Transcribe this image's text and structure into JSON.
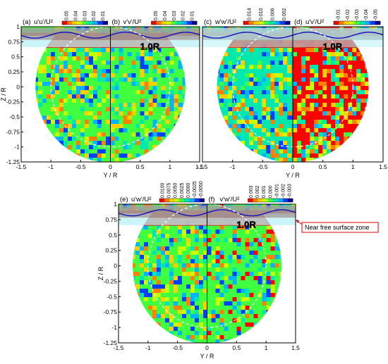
{
  "colors": {
    "scale": [
      "#ff0000",
      "#ff8000",
      "#ffd000",
      "#c8ff00",
      "#40ff40",
      "#00e8b0",
      "#00b4ff",
      "#0040ff",
      "#000090"
    ],
    "free_surface_band": "#a0a0a0",
    "free_surface_zone_fill": "#b8f0f4",
    "wave": "#1010c0",
    "top_wedge": "#d81010",
    "circle_dash": "#ffffff",
    "annotation": "#e00000"
  },
  "annotations": {
    "radius_label": "1.0R",
    "zone_label": "Near free surface zone"
  },
  "chart_data": [
    {
      "type": "heatmap",
      "xlabel": "Y / R",
      "ylabel": "Z / R",
      "xlim": [
        -1.5,
        1.5
      ],
      "ylim": [
        -1.25,
        1
      ],
      "x_ticks": [
        "-1.5",
        "-1",
        "-0.5",
        "0",
        "0.5",
        "1",
        "1.5"
      ],
      "y_ticks": [
        "1",
        "0.75",
        "0.5",
        "0.25",
        "0",
        "-0.25",
        "-0.5",
        "-0.75",
        "-1",
        "-1.25"
      ],
      "panels": [
        {
          "id": "a",
          "label": "(a)",
          "quantity": "u'u'/U²",
          "side": "left",
          "colorbar_ticks": [
            "0.05",
            "0.04",
            "0.03",
            "0.02",
            "0.01"
          ]
        },
        {
          "id": "b",
          "label": "(b)",
          "quantity": "v'v'/U²",
          "side": "right",
          "colorbar_ticks": [
            "0.05",
            "0.04",
            "0.03",
            "0.02",
            "0.01"
          ]
        }
      ]
    },
    {
      "type": "heatmap",
      "xlabel": "Y / R",
      "ylabel": "",
      "xlim": [
        -1.5,
        1.5
      ],
      "ylim": [
        -1.25,
        1
      ],
      "x_ticks": [
        "-1.5",
        "-1",
        "-0.5",
        "0",
        "0.5",
        "1",
        "1.5"
      ],
      "panels": [
        {
          "id": "c",
          "label": "(c)",
          "quantity": "w'w'/U²",
          "side": "left",
          "colorbar_ticks": [
            "0.014",
            "0.010",
            "0.006",
            "0.002"
          ]
        },
        {
          "id": "d",
          "label": "(d)",
          "quantity": "u'v'/U²",
          "side": "right",
          "colorbar_ticks": [
            "-0.01",
            "-0.02",
            "-0.03",
            "-0.04",
            "-0.05"
          ]
        }
      ]
    },
    {
      "type": "heatmap",
      "xlabel": "Y / R",
      "ylabel": "Z / R",
      "xlim": [
        -1.5,
        1.5
      ],
      "ylim": [
        -1.25,
        1
      ],
      "x_ticks": [
        "-1.5",
        "-1",
        "-0.5",
        "0",
        "0.5",
        "1",
        "1.5"
      ],
      "y_ticks": [
        "1",
        "0.75",
        "0.5",
        "0.25",
        "0",
        "-0.25",
        "-0.5",
        "-0.75",
        "-1",
        "-1.25"
      ],
      "panels": [
        {
          "id": "e",
          "label": "(e)",
          "quantity": "u'w'/U²",
          "side": "left",
          "colorbar_ticks": [
            "0.0100",
            "0.0075",
            "0.0050",
            "0.0025",
            "0.0000",
            "-0.0025",
            "-0.0050"
          ]
        },
        {
          "id": "f",
          "label": "(f)",
          "quantity": "v'w'/U²",
          "side": "right",
          "colorbar_ticks": [
            "0.003",
            "0.002",
            "0.001",
            "0.000",
            "-0.001",
            "-0.002",
            "-0.003"
          ]
        }
      ]
    }
  ]
}
